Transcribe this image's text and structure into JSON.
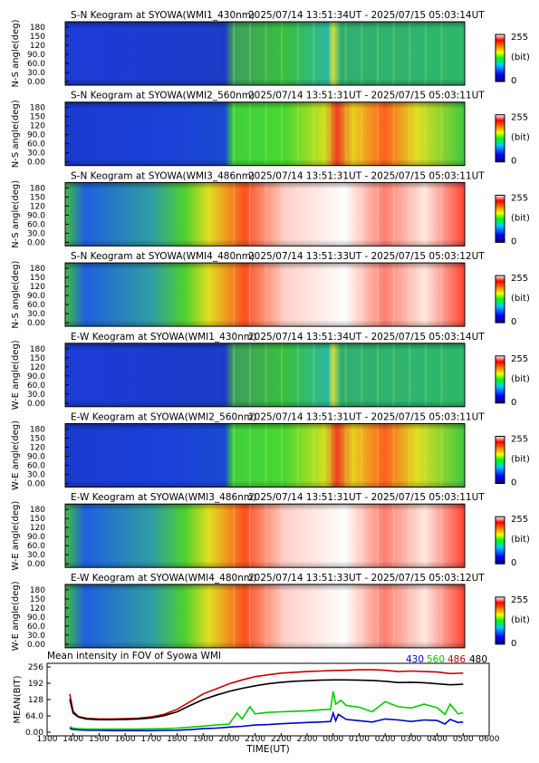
{
  "panels": [
    {
      "title": "S-N Keogram at SYOWA(WMI1_430nm)",
      "range": "2025/07/14 13:51:34UT - 2025/07/15 05:03:14UT",
      "ylabel": "N-S angle(deg)",
      "colorbar": {
        "max": "255",
        "unit": "(bit)",
        "min": "0"
      }
    },
    {
      "title": "S-N Keogram at SYOWA(WMI2_560nm)",
      "range": "2025/07/14 13:51:31UT - 2025/07/15 05:03:11UT",
      "ylabel": "N-S angle(deg)",
      "colorbar": {
        "max": "255",
        "unit": "(bit)",
        "min": "0"
      }
    },
    {
      "title": "S-N Keogram at SYOWA(WMI3_486nm)",
      "range": "2025/07/14 13:51:31UT - 2025/07/15 05:03:11UT",
      "ylabel": "N-S angle(deg)",
      "colorbar": {
        "max": "255",
        "unit": "(bit)",
        "min": "0"
      }
    },
    {
      "title": "S-N Keogram at SYOWA(WMI4_480nm)",
      "range": "2025/07/14 13:51:33UT - 2025/07/15 05:03:12UT",
      "ylabel": "N-S angle(deg)",
      "colorbar": {
        "max": "255",
        "unit": "(bit)",
        "min": "0"
      }
    },
    {
      "title": "E-W Keogram at SYOWA(WMI1_430nm)",
      "range": "2025/07/14 13:51:34UT - 2025/07/15 05:03:14UT",
      "ylabel": "W-E angle(deg)",
      "colorbar": {
        "max": "255",
        "unit": "(bit)",
        "min": "0"
      }
    },
    {
      "title": "E-W Keogram at SYOWA(WMI2_560nm)",
      "range": "2025/07/14 13:51:31UT - 2025/07/15 05:03:11UT",
      "ylabel": "W-E angle(deg)",
      "colorbar": {
        "max": "255",
        "unit": "(bit)",
        "min": "0"
      }
    },
    {
      "title": "E-W Keogram at SYOWA(WMI3_486nm)",
      "range": "2025/07/14 13:51:31UT - 2025/07/15 05:03:11UT",
      "ylabel": "W-E angle(deg)",
      "colorbar": {
        "max": "255",
        "unit": "(bit)",
        "min": "0"
      }
    },
    {
      "title": "E-W Keogram at SYOWA(WMI4_480nm)",
      "range": "2025/07/14 13:51:33UT - 2025/07/15 05:03:12UT",
      "ylabel": "W-E angle(deg)",
      "colorbar": {
        "max": "255",
        "unit": "(bit)",
        "min": "0"
      }
    }
  ],
  "keogram_yticks": [
    "180",
    "150",
    "120",
    "90.0",
    "60.0",
    "30.0",
    "0.00"
  ],
  "colors": {
    "s430": "#0000cc",
    "s560": "#00cc00",
    "s486": "#cc0000",
    "s480": "#000000"
  },
  "chart_data": {
    "type": "line",
    "title": "Mean intensity in FOV of Syowa WMI",
    "xlabel": "TIME(UT)",
    "ylabel": "MEAN(BIT)",
    "xticks": [
      "1300",
      "1400",
      "1500",
      "1600",
      "1700",
      "1800",
      "1900",
      "2000",
      "2100",
      "2200",
      "2300",
      "0000",
      "0100",
      "0200",
      "0300",
      "0400",
      "0500",
      "0600"
    ],
    "yticks": [
      "256",
      "192",
      "128",
      "64.0",
      "0.00"
    ],
    "ylim": [
      0,
      256
    ],
    "x_unit": "hours after 13:00 UT",
    "xlim": [
      0,
      17
    ],
    "series": [
      {
        "name": "430",
        "color": "#0000cc",
        "x": [
          0.87,
          1.0,
          1.2,
          1.5,
          2.0,
          2.5,
          3.0,
          3.5,
          4.0,
          4.5,
          5.0,
          5.5,
          6.0,
          6.5,
          7.0,
          7.5,
          8.0,
          8.5,
          9.0,
          9.5,
          10.0,
          10.5,
          10.9,
          11.0,
          11.1,
          11.2,
          11.5,
          12.0,
          12.5,
          13.0,
          13.5,
          14.0,
          14.5,
          15.0,
          15.3,
          15.5,
          15.8,
          16.0
        ],
        "y": [
          15,
          11,
          9,
          8,
          7,
          6,
          6,
          6,
          6,
          7,
          8,
          10,
          14,
          16,
          20,
          23,
          28,
          30,
          33,
          36,
          38,
          40,
          42,
          75,
          45,
          70,
          50,
          45,
          40,
          52,
          48,
          42,
          48,
          46,
          32,
          50,
          38,
          40
        ]
      },
      {
        "name": "560",
        "color": "#00cc00",
        "x": [
          0.87,
          1.0,
          1.2,
          1.5,
          2.0,
          2.5,
          3.0,
          3.5,
          4.0,
          4.5,
          5.0,
          5.5,
          6.0,
          6.5,
          7.0,
          7.3,
          7.5,
          7.8,
          8.0,
          8.5,
          9.0,
          9.5,
          10.0,
          10.5,
          10.9,
          11.0,
          11.1,
          11.3,
          11.5,
          12.0,
          12.5,
          13.0,
          13.5,
          14.0,
          14.5,
          15.0,
          15.3,
          15.5,
          15.8,
          16.0
        ],
        "y": [
          22,
          16,
          14,
          12,
          12,
          12,
          12,
          12,
          13,
          14,
          16,
          20,
          24,
          28,
          32,
          75,
          52,
          100,
          72,
          78,
          80,
          82,
          84,
          88,
          90,
          160,
          110,
          125,
          105,
          98,
          80,
          120,
          100,
          95,
          110,
          96,
          70,
          110,
          72,
          76
        ]
      },
      {
        "name": "486",
        "color": "#cc0000",
        "x": [
          0.87,
          1.0,
          1.2,
          1.5,
          2.0,
          2.5,
          3.0,
          3.5,
          4.0,
          4.5,
          5.0,
          5.5,
          6.0,
          6.5,
          7.0,
          7.5,
          8.0,
          8.5,
          9.0,
          9.5,
          10.0,
          10.5,
          11.0,
          11.5,
          12.0,
          12.5,
          13.0,
          13.5,
          14.0,
          14.5,
          15.0,
          15.5,
          16.0
        ],
        "y": [
          150,
          82,
          62,
          55,
          52,
          52,
          53,
          55,
          60,
          70,
          90,
          120,
          150,
          170,
          190,
          205,
          218,
          225,
          232,
          235,
          238,
          240,
          242,
          243,
          245,
          245,
          243,
          238,
          240,
          238,
          236,
          230,
          232
        ]
      },
      {
        "name": "480",
        "color": "#000000",
        "x": [
          0.87,
          1.0,
          1.2,
          1.5,
          2.0,
          2.5,
          3.0,
          3.5,
          4.0,
          4.5,
          5.0,
          5.5,
          6.0,
          6.5,
          7.0,
          7.5,
          8.0,
          8.5,
          9.0,
          9.5,
          10.0,
          10.5,
          11.0,
          11.5,
          12.0,
          12.5,
          13.0,
          13.5,
          14.0,
          14.5,
          15.0,
          15.5,
          16.0
        ],
        "y": [
          130,
          75,
          60,
          52,
          49,
          49,
          50,
          52,
          56,
          65,
          80,
          105,
          128,
          145,
          160,
          172,
          182,
          190,
          196,
          200,
          202,
          204,
          205,
          205,
          204,
          203,
          200,
          195,
          196,
          194,
          190,
          186,
          188
        ]
      }
    ]
  }
}
